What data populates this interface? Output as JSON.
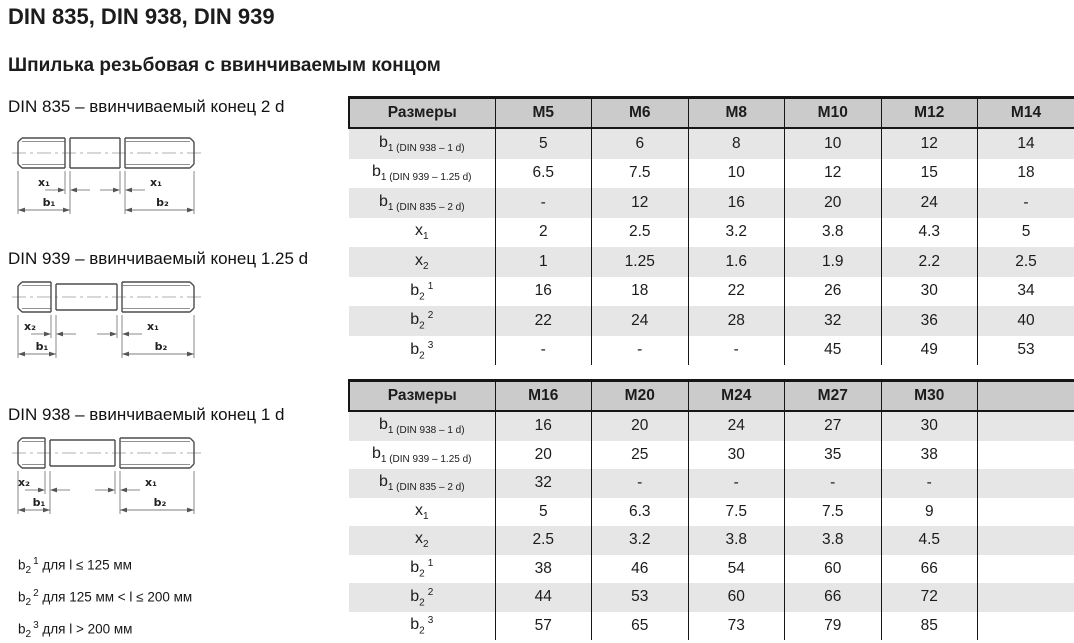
{
  "page": {
    "title": "DIN 835, DIN 938, DIN 939",
    "subtitle": "Шпилька резьбовая с ввинчиваемым концом"
  },
  "colors": {
    "table_header_bg": "#cbcbcb",
    "table_stripe_bg": "#e6e6e6",
    "table_border": "#161616",
    "drawing_line": "#4d4d4d"
  },
  "drawings": [
    {
      "caption": "DIN 835 – ввинчиваемый конец 2 d",
      "labels": {
        "left_x": "x₁",
        "right_x": "x₁",
        "left_b": "b₁",
        "right_b": "b₂"
      }
    },
    {
      "caption": "DIN 939 – ввинчиваемый конец 1.25 d",
      "labels": {
        "left_x": "x₂",
        "right_x": "x₁",
        "left_b": "b₁",
        "right_b": "b₂"
      }
    },
    {
      "caption": "DIN 938 – ввинчиваемый конец 1 d",
      "labels": {
        "left_x": "x₂",
        "right_x": "x₁",
        "left_b": "b₁",
        "right_b": "b₂"
      }
    }
  ],
  "footnotes": [
    {
      "base": "b",
      "sub": "2",
      "sup": "1",
      "text": " для l ≤ 125 мм"
    },
    {
      "base": "b",
      "sub": "2",
      "sup": "2",
      "text": " для 125 мм < l ≤ 200 мм"
    },
    {
      "base": "b",
      "sub": "2",
      "sup": "3",
      "text": " для l > 200 мм"
    }
  ],
  "tables": [
    {
      "header": [
        "Размеры",
        "M5",
        "M6",
        "M8",
        "M10",
        "M12",
        "M14"
      ],
      "rows": [
        {
          "label": {
            "base": "b",
            "sub": "1 (DIN 938 – 1 d)"
          },
          "values": [
            "5",
            "6",
            "8",
            "10",
            "12",
            "14"
          ]
        },
        {
          "label": {
            "base": "b",
            "sub": "1 (DIN 939 – 1.25 d)"
          },
          "values": [
            "6.5",
            "7.5",
            "10",
            "12",
            "15",
            "18"
          ]
        },
        {
          "label": {
            "base": "b",
            "sub": "1 (DIN 835 – 2 d)"
          },
          "values": [
            "-",
            "12",
            "16",
            "20",
            "24",
            "-"
          ]
        },
        {
          "label": {
            "base": "x",
            "sub": "1"
          },
          "values": [
            "2",
            "2.5",
            "3.2",
            "3.8",
            "4.3",
            "5"
          ]
        },
        {
          "label": {
            "base": "x",
            "sub": "2"
          },
          "values": [
            "1",
            "1.25",
            "1.6",
            "1.9",
            "2.2",
            "2.5"
          ]
        },
        {
          "label": {
            "base": "b",
            "sub": "2",
            "sup": "1"
          },
          "values": [
            "16",
            "18",
            "22",
            "26",
            "30",
            "34"
          ]
        },
        {
          "label": {
            "base": "b",
            "sub": "2",
            "sup": "2"
          },
          "values": [
            "22",
            "24",
            "28",
            "32",
            "36",
            "40"
          ]
        },
        {
          "label": {
            "base": "b",
            "sub": "2",
            "sup": "3"
          },
          "values": [
            "-",
            "-",
            "-",
            "45",
            "49",
            "53"
          ]
        }
      ]
    },
    {
      "header": [
        "Размеры",
        "M16",
        "M20",
        "M24",
        "M27",
        "M30",
        ""
      ],
      "rows": [
        {
          "label": {
            "base": "b",
            "sub": "1 (DIN 938 – 1 d)"
          },
          "values": [
            "16",
            "20",
            "24",
            "27",
            "30",
            ""
          ]
        },
        {
          "label": {
            "base": "b",
            "sub": "1 (DIN 939 – 1.25 d)"
          },
          "values": [
            "20",
            "25",
            "30",
            "35",
            "38",
            ""
          ]
        },
        {
          "label": {
            "base": "b",
            "sub": "1 (DIN 835 – 2 d)"
          },
          "values": [
            "32",
            "-",
            "-",
            "-",
            "-",
            ""
          ]
        },
        {
          "label": {
            "base": "x",
            "sub": "1"
          },
          "values": [
            "5",
            "6.3",
            "7.5",
            "7.5",
            "9",
            ""
          ]
        },
        {
          "label": {
            "base": "x",
            "sub": "2"
          },
          "values": [
            "2.5",
            "3.2",
            "3.8",
            "3.8",
            "4.5",
            ""
          ]
        },
        {
          "label": {
            "base": "b",
            "sub": "2",
            "sup": "1"
          },
          "values": [
            "38",
            "46",
            "54",
            "60",
            "66",
            ""
          ]
        },
        {
          "label": {
            "base": "b",
            "sub": "2",
            "sup": "2"
          },
          "values": [
            "44",
            "53",
            "60",
            "66",
            "72",
            ""
          ]
        },
        {
          "label": {
            "base": "b",
            "sub": "2",
            "sup": "3"
          },
          "values": [
            "57",
            "65",
            "73",
            "79",
            "85",
            ""
          ]
        }
      ]
    }
  ]
}
